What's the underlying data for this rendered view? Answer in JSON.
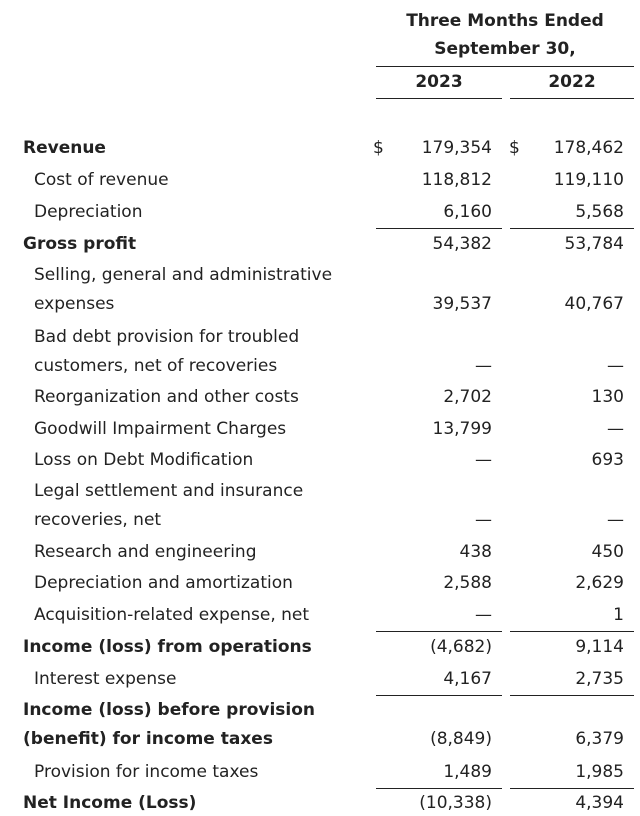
{
  "header": {
    "period_line1": "Three Months Ended",
    "period_line2": "September 30,",
    "col1_year": "2023",
    "col2_year": "2022"
  },
  "currency_symbol": "$",
  "rows": [
    {
      "lines": [
        "Revenue"
      ],
      "bold": true,
      "c1": "179,354",
      "c2": "178,462",
      "dollar": true
    },
    {
      "lines": [
        "Cost of revenue"
      ],
      "bold": false,
      "c1": "118,812",
      "c2": "119,110"
    },
    {
      "lines": [
        "Depreciation"
      ],
      "bold": false,
      "c1": "6,160",
      "c2": "5,568"
    },
    {
      "lines": [
        "Gross profit"
      ],
      "bold": true,
      "c1": "54,382",
      "c2": "53,784"
    },
    {
      "lines": [
        "Selling, general and administrative",
        "expenses"
      ],
      "bold": false,
      "c1": "39,537",
      "c2": "40,767"
    },
    {
      "lines": [
        "Bad debt provision for troubled",
        "customers, net of recoveries"
      ],
      "bold": false,
      "c1": "—",
      "c2": "—"
    },
    {
      "lines": [
        "Reorganization and other costs"
      ],
      "bold": false,
      "c1": "2,702",
      "c2": "130"
    },
    {
      "lines": [
        "Goodwill Impairment Charges"
      ],
      "bold": false,
      "c1": "13,799",
      "c2": "—"
    },
    {
      "lines": [
        "Loss on Debt Modification"
      ],
      "bold": false,
      "c1": "—",
      "c2": "693"
    },
    {
      "lines": [
        "Legal settlement and insurance",
        "recoveries, net"
      ],
      "bold": false,
      "c1": "—",
      "c2": "—"
    },
    {
      "lines": [
        "Research and engineering"
      ],
      "bold": false,
      "c1": "438",
      "c2": "450"
    },
    {
      "lines": [
        "Depreciation and amortization"
      ],
      "bold": false,
      "c1": "2,588",
      "c2": "2,629"
    },
    {
      "lines": [
        "Acquisition-related expense, net"
      ],
      "bold": false,
      "c1": "—",
      "c2": "1"
    },
    {
      "lines": [
        "Income (loss) from operations"
      ],
      "bold": true,
      "c1": "(4,682)",
      "c2": "9,114"
    },
    {
      "lines": [
        "Interest expense"
      ],
      "bold": false,
      "c1": "4,167",
      "c2": "2,735"
    },
    {
      "lines": [
        "Income (loss) before provision",
        "(benefit) for income taxes"
      ],
      "bold": true,
      "c1": "(8,849)",
      "c2": "6,379"
    },
    {
      "lines": [
        "Provision for income taxes"
      ],
      "bold": false,
      "c1": "1,489",
      "c2": "1,985"
    },
    {
      "lines": [
        "Net Income (Loss)"
      ],
      "bold": true,
      "c1": "(10,338)",
      "c2": "4,394"
    }
  ]
}
